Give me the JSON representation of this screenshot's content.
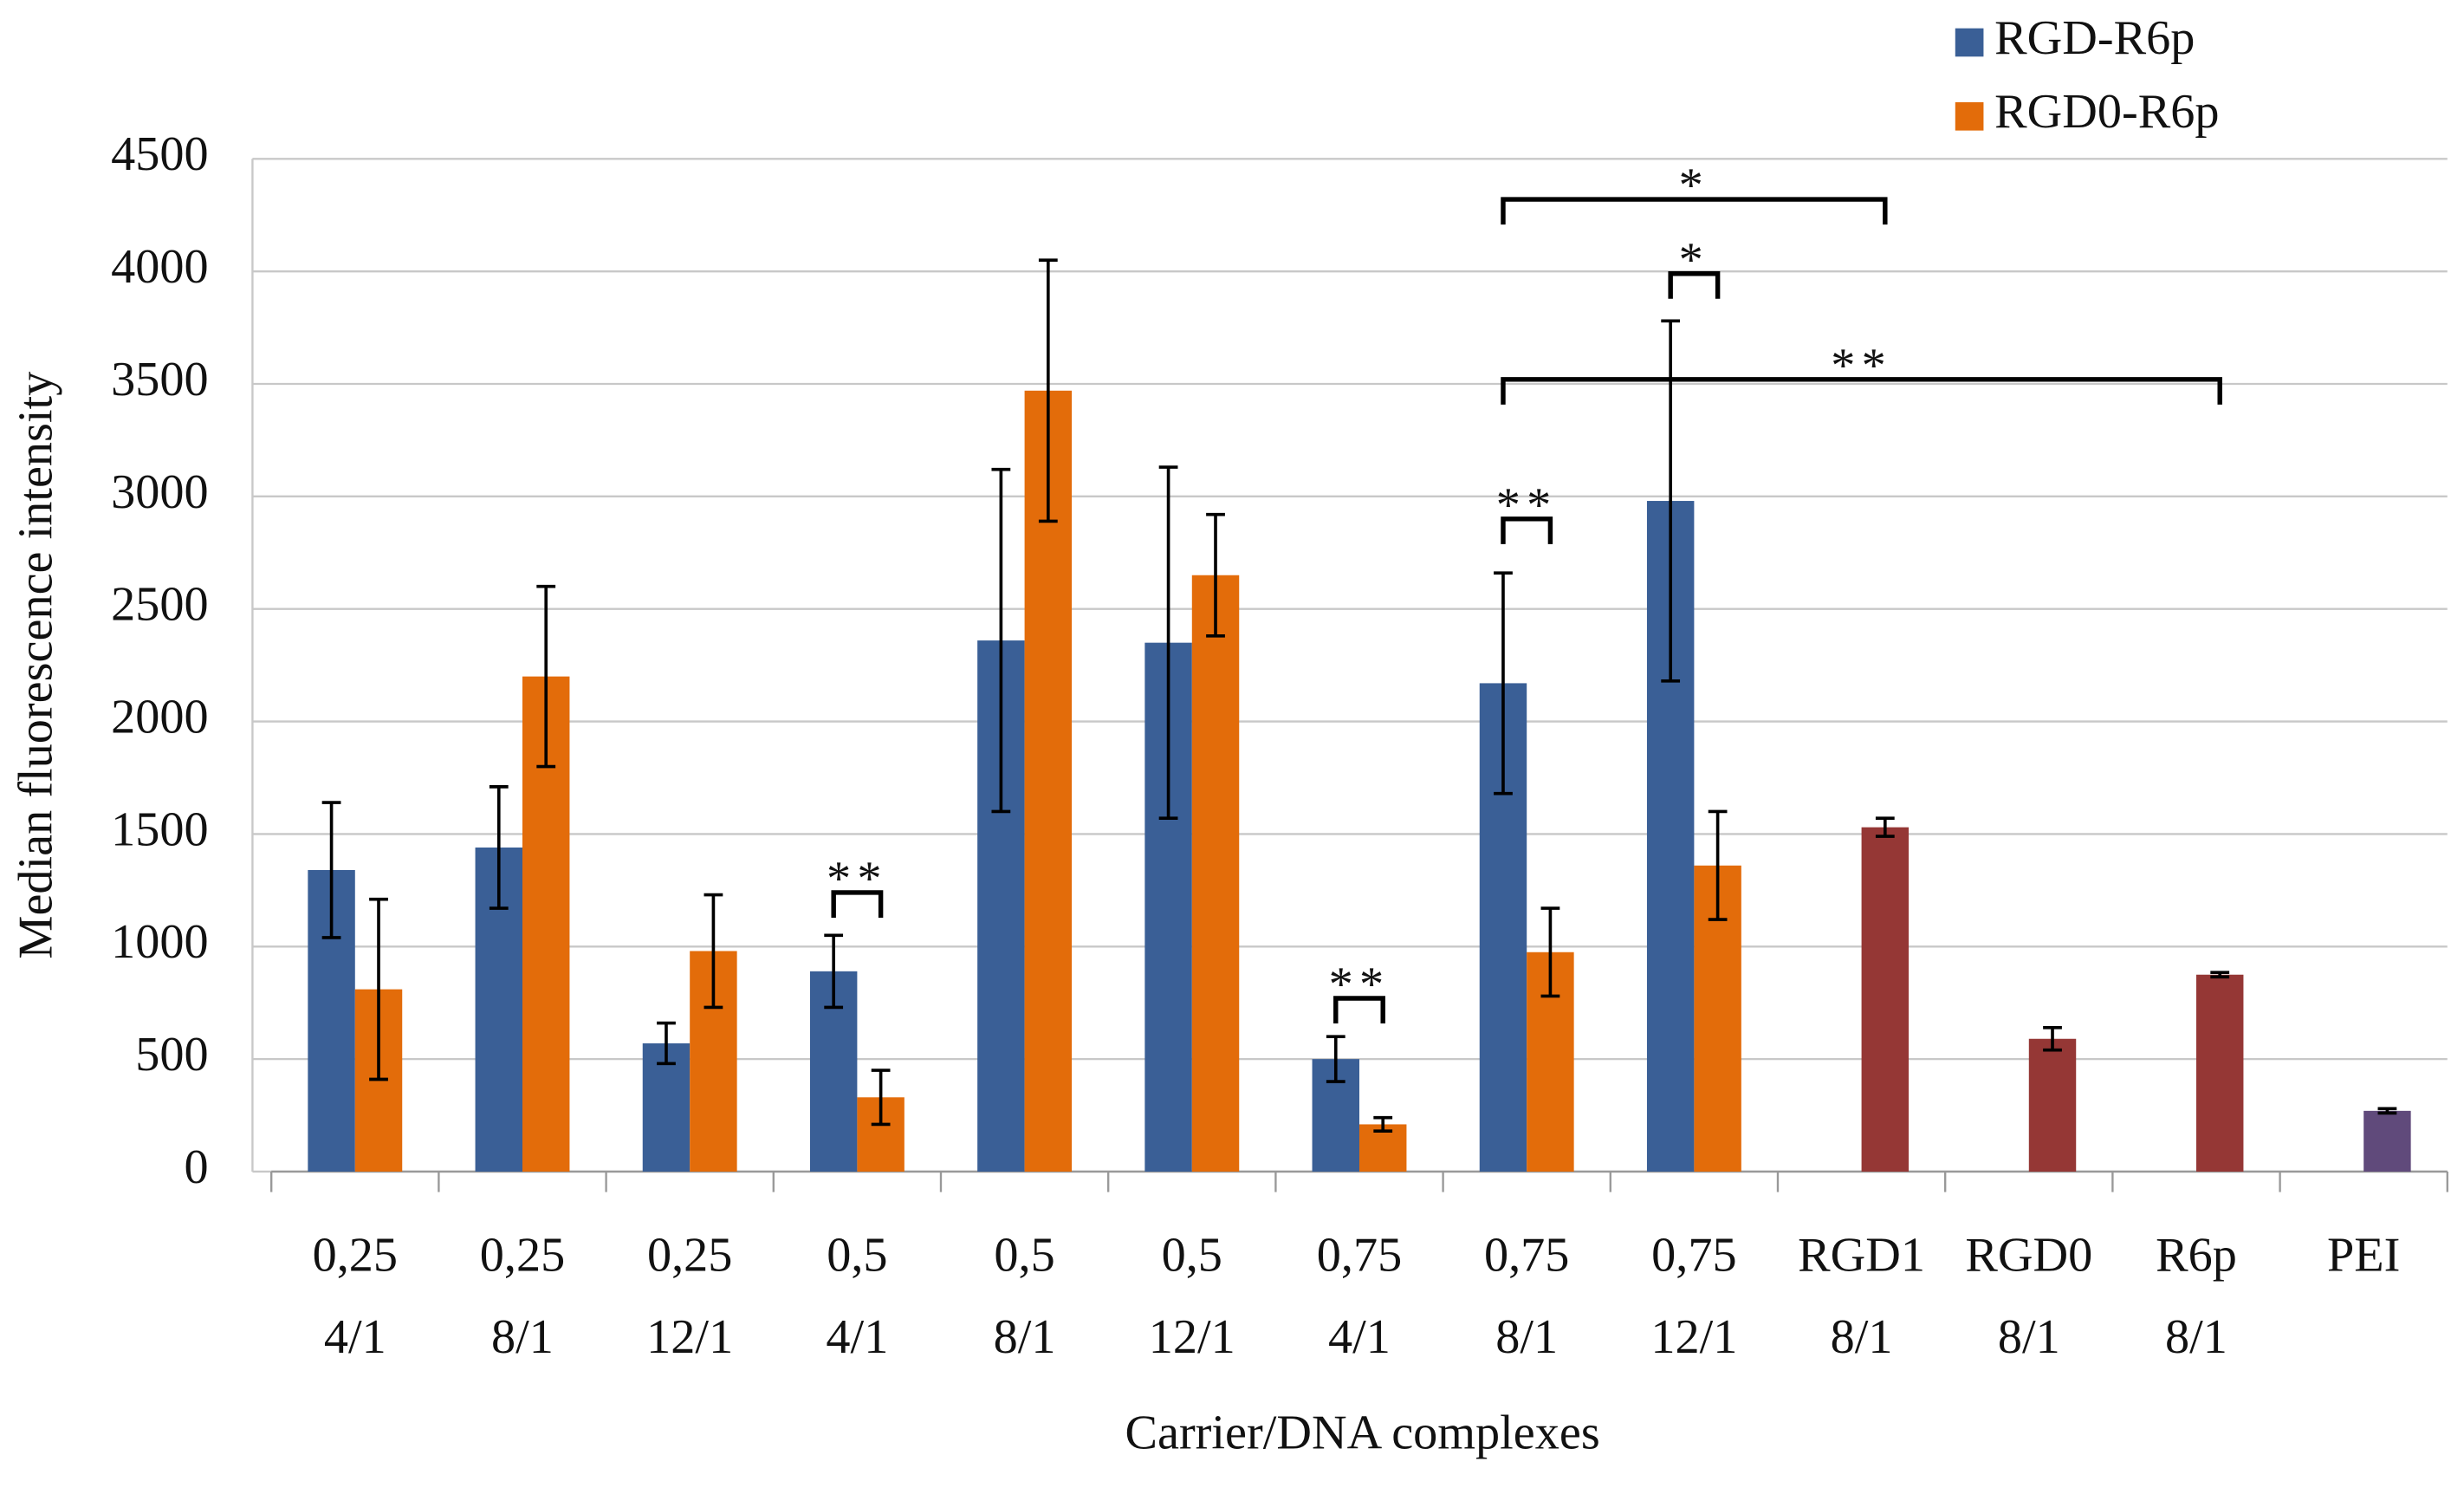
{
  "chart_data": {
    "type": "bar",
    "x_label": "Carrier/DNA complexes",
    "y_label": "Median fluorescence intensity",
    "categories": [
      [
        "0,25",
        "4/1"
      ],
      [
        "0,25",
        "8/1"
      ],
      [
        "0,25",
        "12/1"
      ],
      [
        "0,5",
        "4/1"
      ],
      [
        "0,5",
        "8/1"
      ],
      [
        "0,5",
        "12/1"
      ],
      [
        "0,75",
        "4/1"
      ],
      [
        "0,75",
        "8/1"
      ],
      [
        "0,75",
        "12/1"
      ],
      [
        "RGD1",
        "8/1"
      ],
      [
        "RGD0",
        "8/1"
      ],
      [
        "R6p",
        "8/1"
      ],
      [
        "PEI"
      ]
    ],
    "series": [
      {
        "name": "RGD-R6p",
        "color": "#3a5f96",
        "values": [
          1340,
          1440,
          570,
          890,
          2360,
          2350,
          500,
          2170,
          2980,
          null,
          null,
          null,
          null
        ],
        "errors": [
          300,
          270,
          90,
          160,
          760,
          780,
          100,
          490,
          800,
          null,
          null,
          null,
          null
        ]
      },
      {
        "name": "RGD0-R6p",
        "color": "#e36c0a",
        "values": [
          810,
          2200,
          980,
          330,
          3470,
          2650,
          210,
          975,
          1360,
          null,
          null,
          null,
          null
        ],
        "errors": [
          400,
          400,
          250,
          120,
          580,
          270,
          30,
          195,
          240,
          null,
          null,
          null,
          null
        ]
      },
      {
        "color": "#953735",
        "values": [
          null,
          null,
          null,
          null,
          null,
          null,
          null,
          null,
          null,
          1530,
          590,
          875,
          null
        ],
        "errors": [
          null,
          null,
          null,
          null,
          null,
          null,
          null,
          null,
          null,
          40,
          50,
          10,
          null
        ]
      },
      {
        "color": "#604a7b",
        "values": [
          null,
          null,
          null,
          null,
          null,
          null,
          null,
          null,
          null,
          null,
          null,
          null,
          270
        ],
        "errors": [
          null,
          null,
          null,
          null,
          null,
          null,
          null,
          null,
          null,
          null,
          null,
          null,
          10
        ]
      }
    ],
    "ylim": [
      0,
      4500
    ],
    "yticks": [
      0,
      500,
      1000,
      1500,
      2000,
      2500,
      3000,
      3500,
      4000,
      4500
    ],
    "grid": true,
    "legend": "top-right",
    "annotations": [
      {
        "text": "**",
        "from": [
          3,
          0
        ],
        "to": [
          3,
          1
        ],
        "y": 1240
      },
      {
        "text": "**",
        "from": [
          6,
          0
        ],
        "to": [
          6,
          1
        ],
        "y": 770
      },
      {
        "text": "**",
        "from": [
          7,
          0
        ],
        "to": [
          7,
          1
        ],
        "y": 2900
      },
      {
        "text": "*",
        "from": [
          7,
          0
        ],
        "to": [
          9,
          2
        ],
        "y": 4320
      },
      {
        "text": "*",
        "from": [
          8,
          0
        ],
        "to": [
          8,
          1
        ],
        "y": 3990
      },
      {
        "text": "**",
        "from": [
          7,
          0
        ],
        "to": [
          11,
          2
        ],
        "y": 3520
      }
    ]
  }
}
